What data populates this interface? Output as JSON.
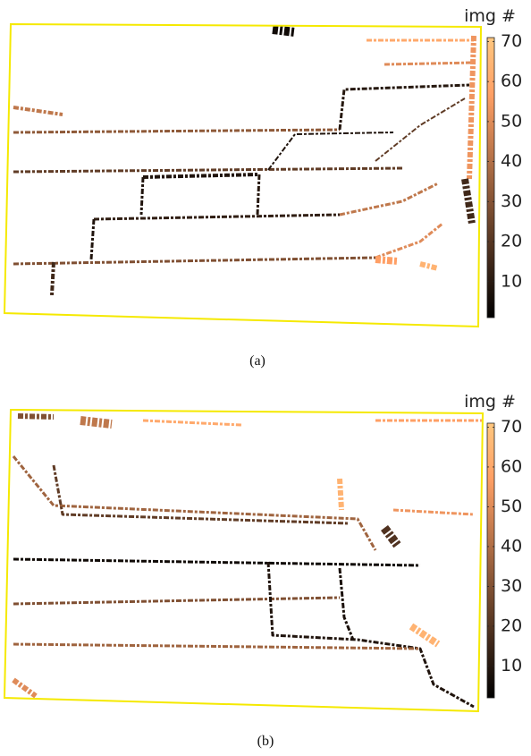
{
  "panels": [
    {
      "colorbar": {
        "title": "img #",
        "lim": [
          1,
          71
        ],
        "ticks": [
          10,
          20,
          30,
          40,
          50,
          60,
          70
        ]
      },
      "caption": "(a)"
    },
    {
      "colorbar": {
        "title": "img #",
        "lim": [
          2,
          71
        ],
        "ticks": [
          10,
          20,
          30,
          40,
          50,
          60,
          70
        ]
      },
      "caption": "(b)"
    }
  ]
}
